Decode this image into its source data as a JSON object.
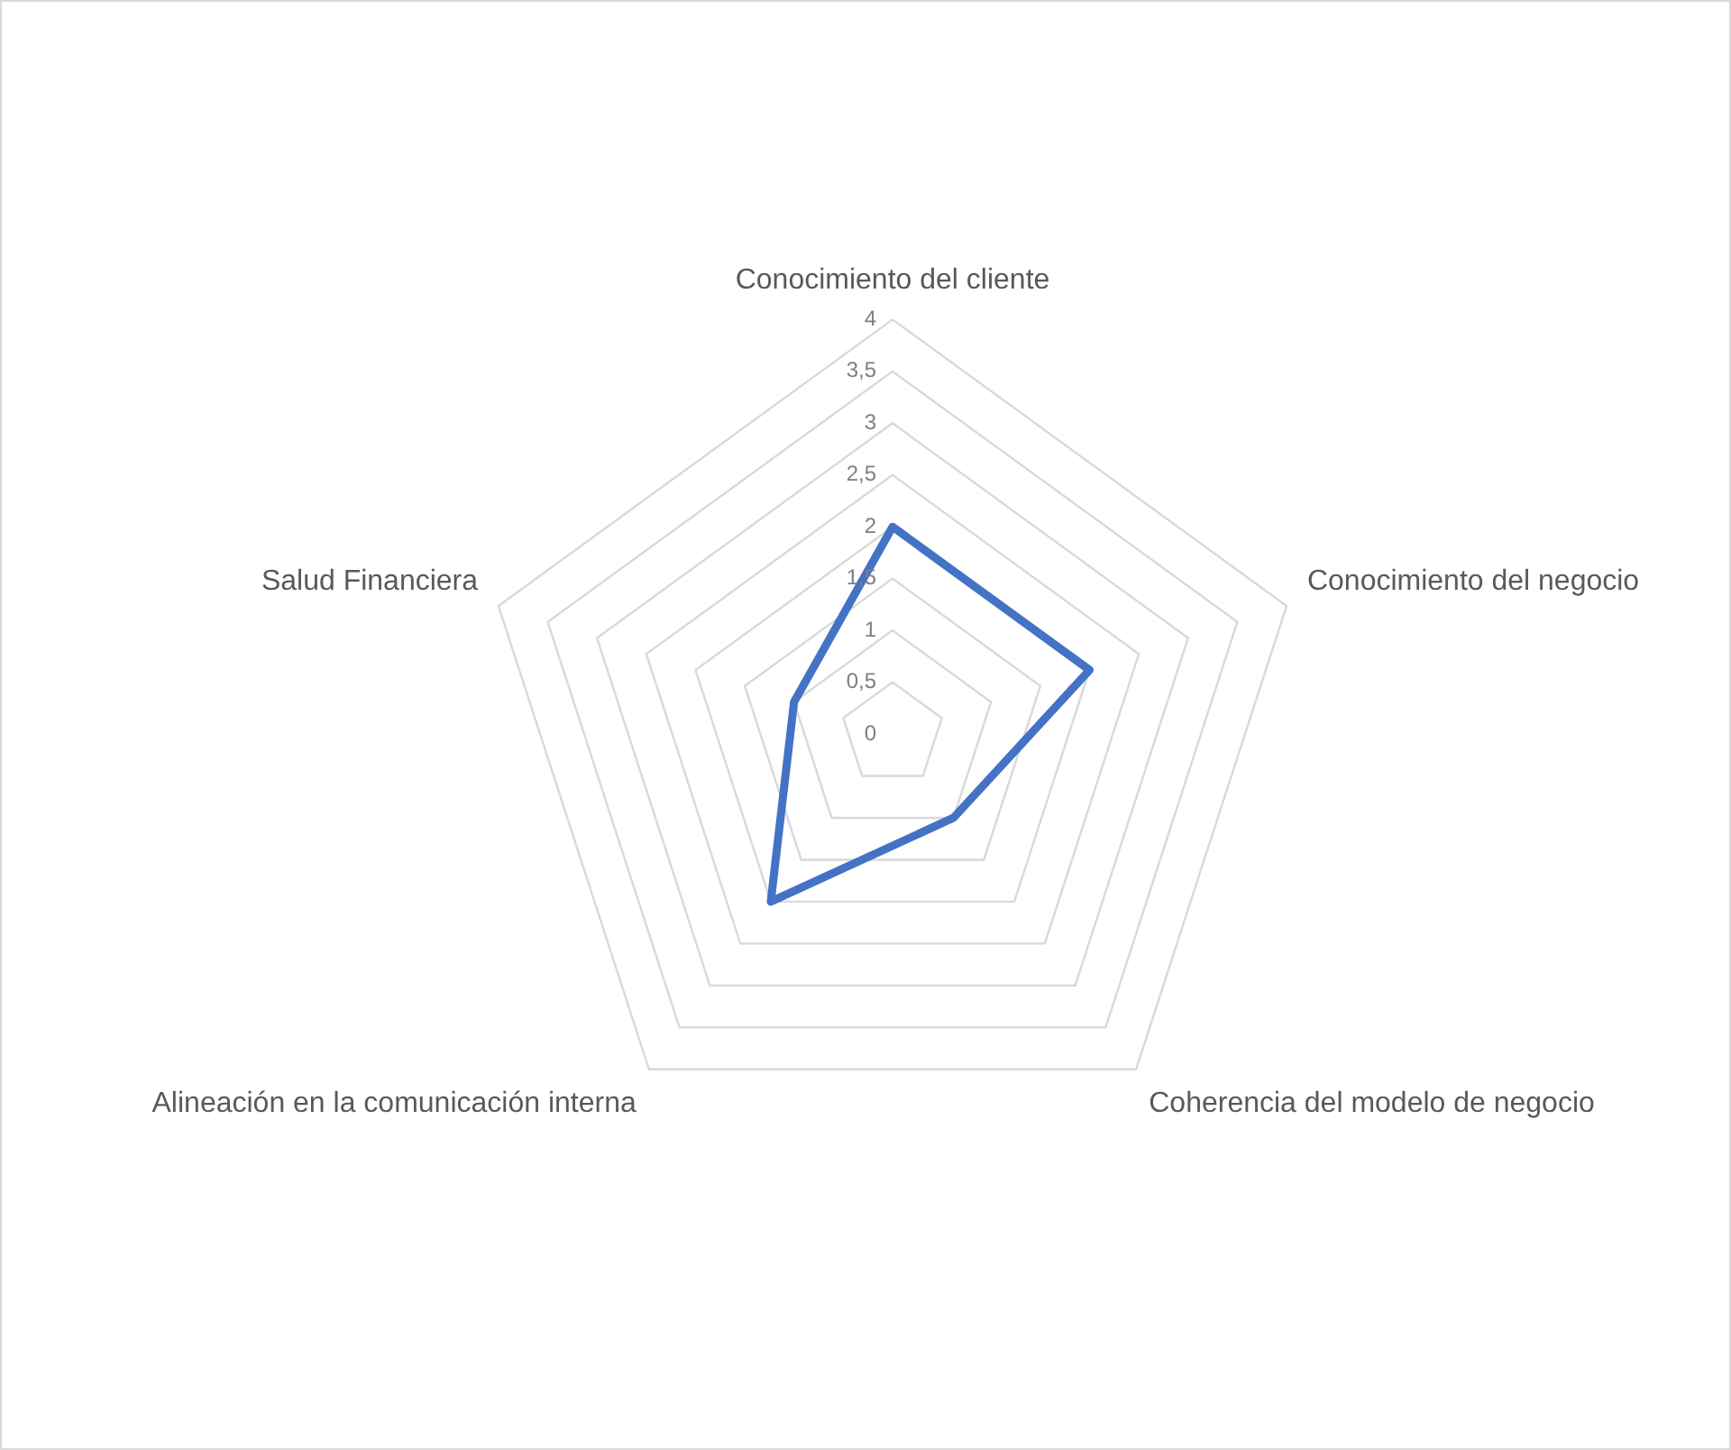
{
  "chart_data": {
    "type": "radar",
    "categories": [
      "Conocimiento del cliente",
      "Conocimiento del negocio",
      "Coherencia del modelo de negocio",
      "Alineación en la comunicación interna",
      "Salud Financiera"
    ],
    "series": [
      {
        "color": "#4472c4",
        "values": [
          2,
          2,
          1,
          2,
          1
        ]
      }
    ],
    "ylim": [
      0,
      4
    ],
    "yticks": [
      0,
      {
        "value": 0.5,
        "label": "0,5"
      },
      1,
      {
        "value": 1.5,
        "label": "1,5"
      },
      2,
      {
        "value": 2.5,
        "label": "2,5"
      },
      3,
      {
        "value": 3.5,
        "label": "3,5"
      },
      4
    ],
    "grid": true,
    "legend": false,
    "marker": "none",
    "line_style": "solid"
  }
}
